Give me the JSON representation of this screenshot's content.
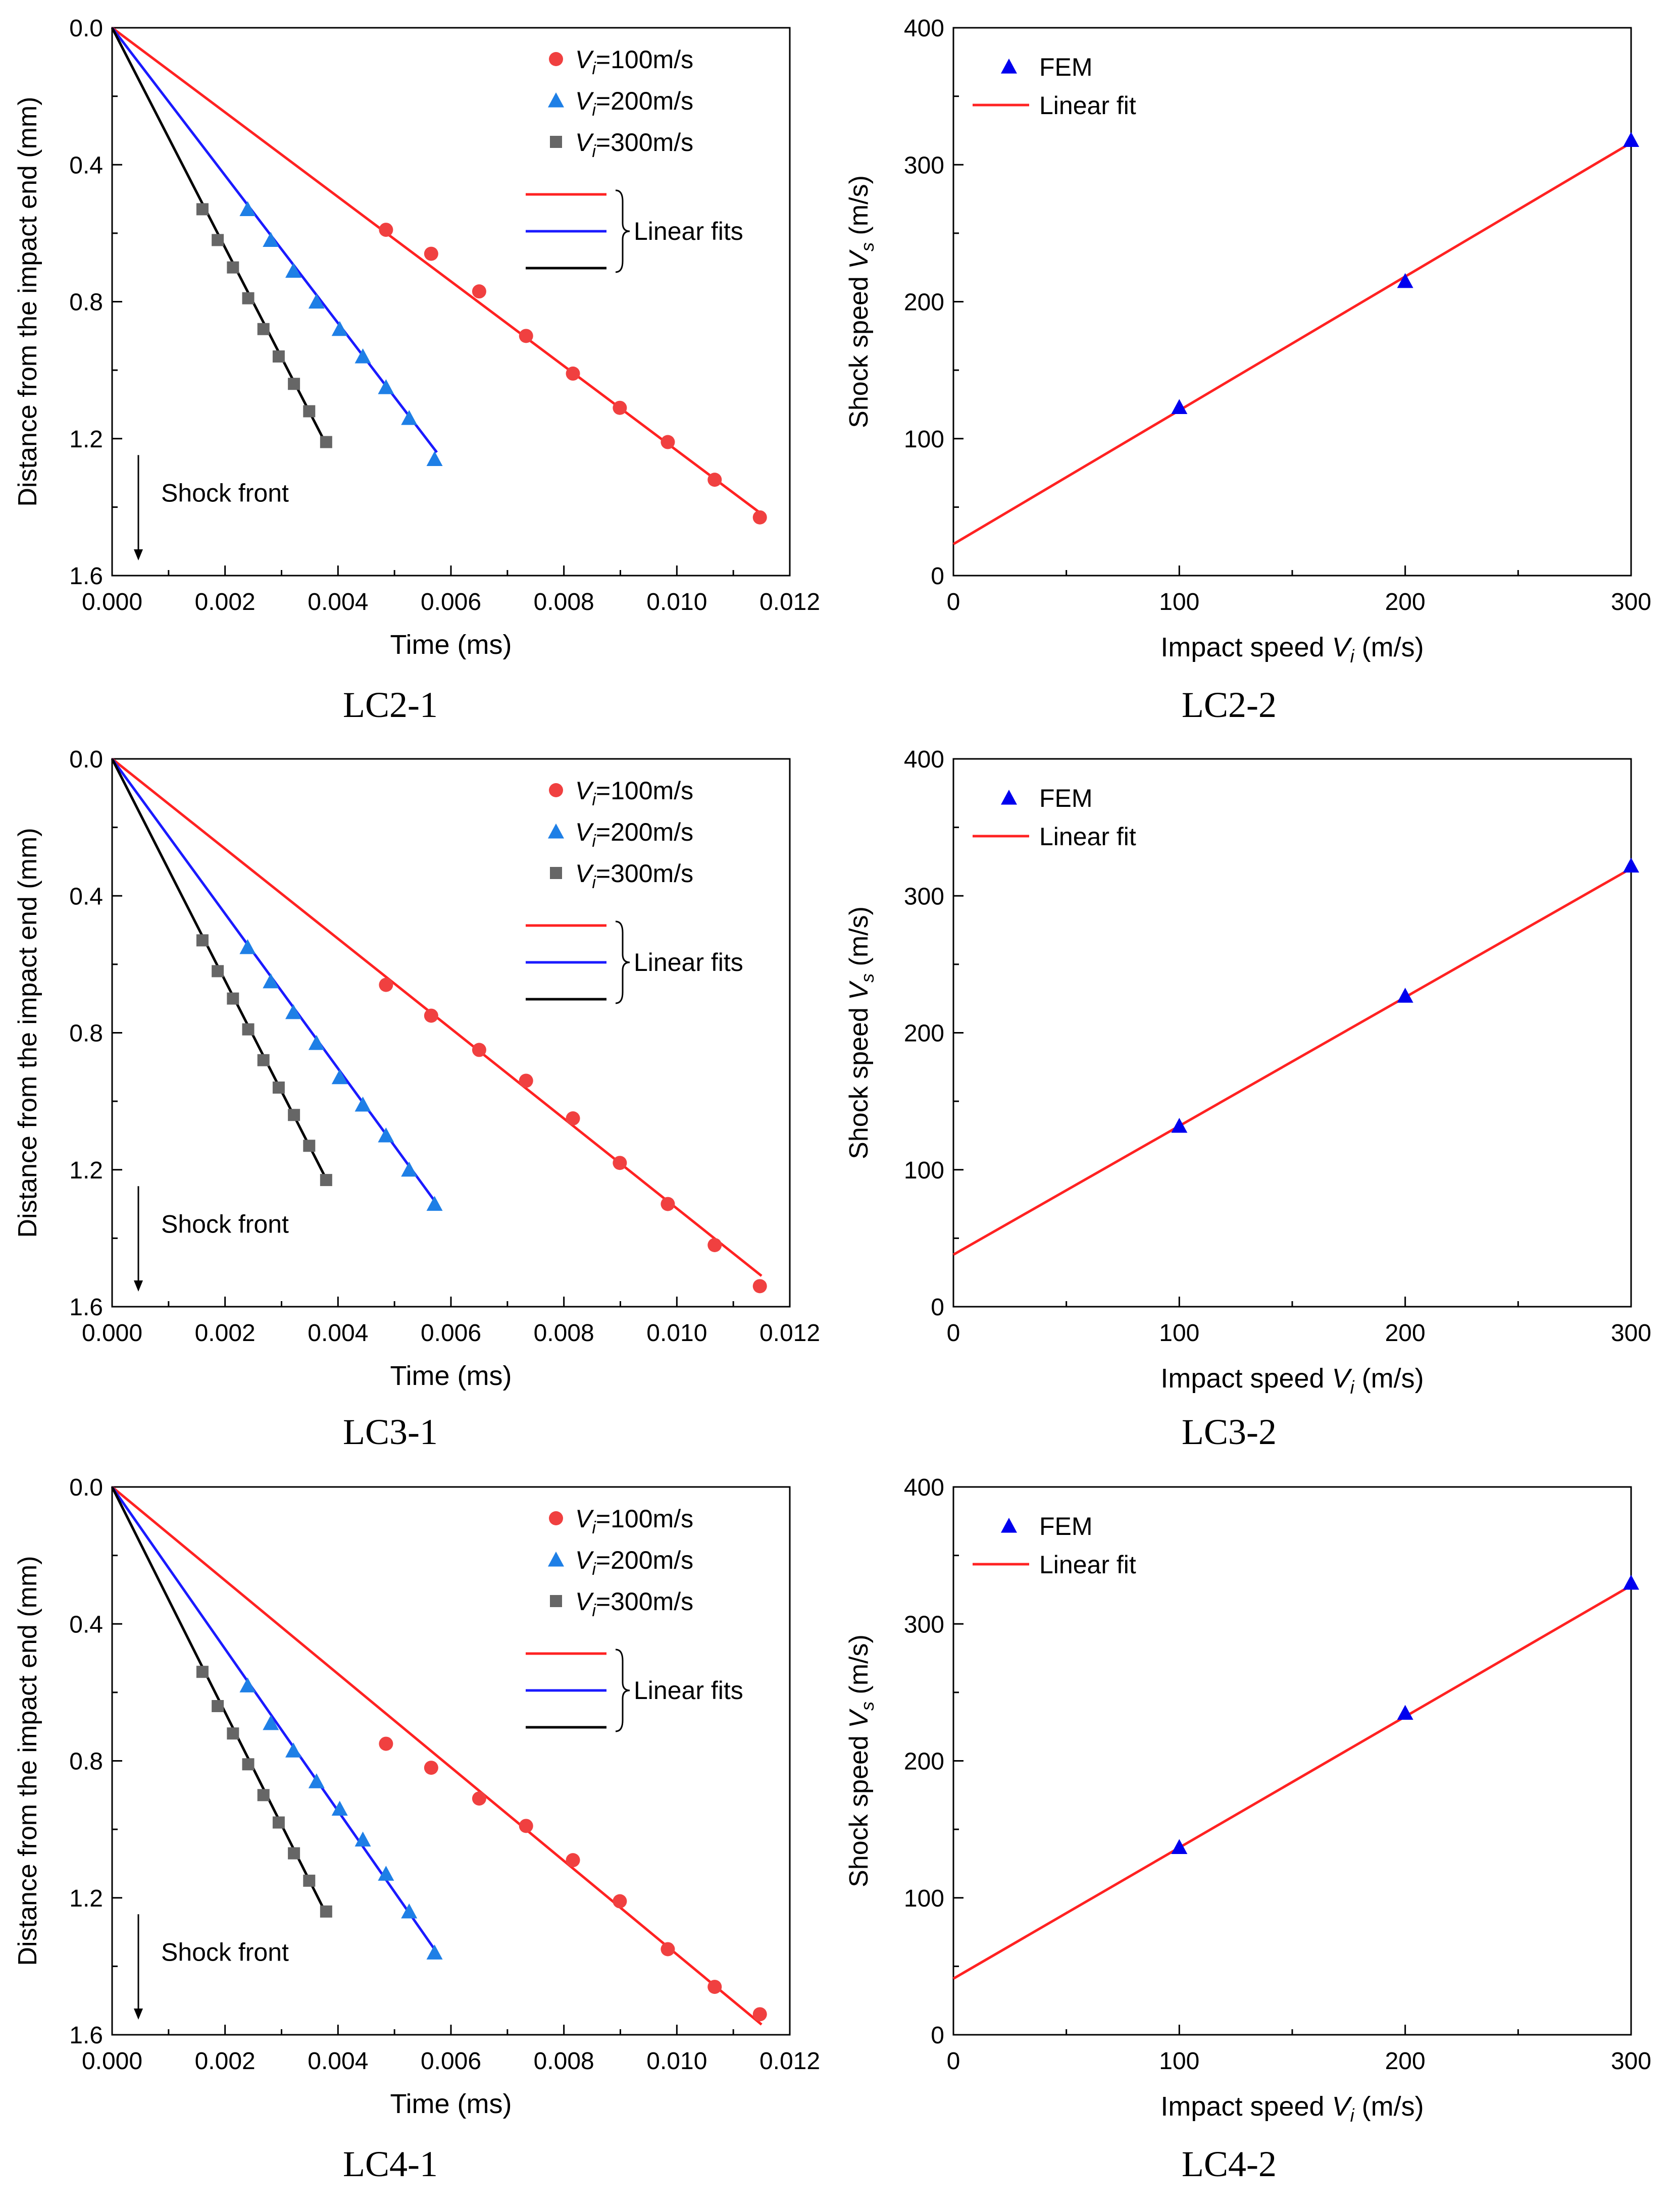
{
  "figure": {
    "colors": {
      "red": "#ff2222",
      "red_marker": "#f04040",
      "blue": "#1a1aff",
      "blue_marker": "#1e7fe6",
      "black": "#000000",
      "gray_marker": "#666666",
      "fem_marker": "#0000ee"
    }
  },
  "chart_data": [
    {
      "id": "LC2-1",
      "type": "scatter",
      "caption": "LC2-1",
      "xlabel": "Time (ms)",
      "ylabel": "Distance from the impact end (mm)",
      "xlim": [
        0,
        0.012
      ],
      "ylim": [
        0,
        1.6
      ],
      "y_inverted": true,
      "xticks": [
        "0.000",
        "0.002",
        "0.004",
        "0.006",
        "0.008",
        "0.010",
        "0.012"
      ],
      "yticks": [
        "0.0",
        "0.4",
        "0.8",
        "1.2",
        "1.6"
      ],
      "legend": {
        "position": "top-right",
        "entries": [
          {
            "prefix": "V",
            "sub": "i",
            "text": "=100m/s"
          },
          {
            "prefix": "V",
            "sub": "i",
            "text": "=200m/s"
          },
          {
            "prefix": "V",
            "sub": "i",
            "text": "=300m/s"
          }
        ],
        "fit_label": "Linear fits"
      },
      "annotation": "Shock front",
      "series": [
        {
          "name": "Vi=100m/s",
          "marker": "circle",
          "color": "#f04040",
          "x": [
            0.00485,
            0.00565,
            0.0065,
            0.00733,
            0.00816,
            0.00899,
            0.00984,
            0.01067,
            0.01147
          ],
          "y": [
            0.59,
            0.66,
            0.77,
            0.9,
            1.01,
            1.11,
            1.21,
            1.32,
            1.43
          ],
          "fit": {
            "x": [
              0,
              0.0115
            ],
            "y": [
              0,
              1.42
            ],
            "color": "#ff2222"
          }
        },
        {
          "name": "Vi=200m/s",
          "marker": "triangle",
          "color": "#1e7fe6",
          "x": [
            0.0024,
            0.00281,
            0.00321,
            0.00362,
            0.00403,
            0.00444,
            0.00485,
            0.00526,
            0.00571
          ],
          "y": [
            0.53,
            0.62,
            0.71,
            0.8,
            0.88,
            0.96,
            1.05,
            1.14,
            1.26
          ],
          "fit": {
            "x": [
              0,
              0.00575
            ],
            "y": [
              0,
              1.24
            ],
            "color": "#1a1aff"
          }
        },
        {
          "name": "Vi=300m/s",
          "marker": "square",
          "color": "#666666",
          "x": [
            0.0016,
            0.00187,
            0.00214,
            0.00241,
            0.00268,
            0.00295,
            0.00322,
            0.00349,
            0.00379
          ],
          "y": [
            0.53,
            0.62,
            0.7,
            0.79,
            0.88,
            0.96,
            1.04,
            1.12,
            1.21
          ],
          "fit": {
            "x": [
              0,
              0.0038
            ],
            "y": [
              0,
              1.22
            ],
            "color": "#000000"
          }
        }
      ]
    },
    {
      "id": "LC2-2",
      "type": "scatter",
      "caption": "LC2-2",
      "xlabel_text": "Impact speed ",
      "xlabel_var": "V",
      "xlabel_sub": "i",
      "xlabel_unit": " (m/s)",
      "ylabel_text": "Shock speed ",
      "ylabel_var": "V",
      "ylabel_sub": "s",
      "ylabel_unit": " (m/s)",
      "xlim": [
        0,
        300
      ],
      "ylim": [
        0,
        400
      ],
      "xticks": [
        "0",
        "100",
        "200",
        "300"
      ],
      "yticks": [
        "0",
        "100",
        "200",
        "300",
        "400"
      ],
      "legend": {
        "position": "top-left",
        "marker_label": "FEM",
        "line_label": "Linear fit"
      },
      "series": [
        {
          "name": "FEM",
          "marker": "triangle",
          "color": "#0000ee",
          "x": [
            100,
            200,
            300
          ],
          "y": [
            123,
            215,
            318
          ]
        }
      ],
      "fit": {
        "x": [
          0,
          300
        ],
        "y": [
          23,
          316
        ],
        "color": "#ff2222"
      }
    },
    {
      "id": "LC3-1",
      "type": "scatter",
      "caption": "LC3-1",
      "xlabel": "Time (ms)",
      "ylabel": "Distance from the impact end (mm)",
      "xlim": [
        0,
        0.012
      ],
      "ylim": [
        0,
        1.6
      ],
      "y_inverted": true,
      "xticks": [
        "0.000",
        "0.002",
        "0.004",
        "0.006",
        "0.008",
        "0.010",
        "0.012"
      ],
      "yticks": [
        "0.0",
        "0.4",
        "0.8",
        "1.2",
        "1.6"
      ],
      "legend": {
        "position": "top-right",
        "entries": [
          {
            "prefix": "V",
            "sub": "i",
            "text": "=100m/s"
          },
          {
            "prefix": "V",
            "sub": "i",
            "text": "=200m/s"
          },
          {
            "prefix": "V",
            "sub": "i",
            "text": "=300m/s"
          }
        ],
        "fit_label": "Linear fits"
      },
      "annotation": "Shock front",
      "series": [
        {
          "name": "Vi=100m/s",
          "marker": "circle",
          "color": "#f04040",
          "x": [
            0.00485,
            0.00565,
            0.0065,
            0.00733,
            0.00816,
            0.00899,
            0.00984,
            0.01067,
            0.01147
          ],
          "y": [
            0.66,
            0.75,
            0.85,
            0.94,
            1.05,
            1.18,
            1.3,
            1.42,
            1.54
          ],
          "fit": {
            "x": [
              0,
              0.0115
            ],
            "y": [
              0,
              1.51
            ],
            "color": "#ff2222"
          }
        },
        {
          "name": "Vi=200m/s",
          "marker": "triangle",
          "color": "#1e7fe6",
          "x": [
            0.0024,
            0.00281,
            0.00321,
            0.00362,
            0.00403,
            0.00444,
            0.00485,
            0.00526,
            0.00571
          ],
          "y": [
            0.55,
            0.65,
            0.74,
            0.83,
            0.93,
            1.01,
            1.1,
            1.2,
            1.3
          ],
          "fit": {
            "x": [
              0,
              0.00575
            ],
            "y": [
              0,
              1.3
            ],
            "color": "#1a1aff"
          }
        },
        {
          "name": "Vi=300m/s",
          "marker": "square",
          "color": "#666666",
          "x": [
            0.0016,
            0.00187,
            0.00214,
            0.00241,
            0.00268,
            0.00295,
            0.00322,
            0.00349,
            0.00379
          ],
          "y": [
            0.53,
            0.62,
            0.7,
            0.79,
            0.88,
            0.96,
            1.04,
            1.13,
            1.23
          ],
          "fit": {
            "x": [
              0,
              0.0038
            ],
            "y": [
              0,
              1.23
            ],
            "color": "#000000"
          }
        }
      ]
    },
    {
      "id": "LC3-2",
      "type": "scatter",
      "caption": "LC3-2",
      "xlabel_text": "Impact speed ",
      "xlabel_var": "V",
      "xlabel_sub": "i",
      "xlabel_unit": " (m/s)",
      "ylabel_text": "Shock speed ",
      "ylabel_var": "V",
      "ylabel_sub": "s",
      "ylabel_unit": " (m/s)",
      "xlim": [
        0,
        300
      ],
      "ylim": [
        0,
        400
      ],
      "xticks": [
        "0",
        "100",
        "200",
        "300"
      ],
      "yticks": [
        "0",
        "100",
        "200",
        "300",
        "400"
      ],
      "legend": {
        "position": "top-left",
        "marker_label": "FEM",
        "line_label": "Linear fit"
      },
      "series": [
        {
          "name": "FEM",
          "marker": "triangle",
          "color": "#0000ee",
          "x": [
            100,
            200,
            300
          ],
          "y": [
            132,
            227,
            322
          ]
        }
      ],
      "fit": {
        "x": [
          0,
          300
        ],
        "y": [
          38,
          320
        ],
        "color": "#ff2222"
      }
    },
    {
      "id": "LC4-1",
      "type": "scatter",
      "caption": "LC4-1",
      "xlabel": "Time (ms)",
      "ylabel": "Distance from the impact end (mm)",
      "xlim": [
        0,
        0.012
      ],
      "ylim": [
        0,
        1.6
      ],
      "y_inverted": true,
      "xticks": [
        "0.000",
        "0.002",
        "0.004",
        "0.006",
        "0.008",
        "0.010",
        "0.012"
      ],
      "yticks": [
        "0.0",
        "0.4",
        "0.8",
        "1.2",
        "1.6"
      ],
      "legend": {
        "position": "top-right",
        "entries": [
          {
            "prefix": "V",
            "sub": "i",
            "text": "=100m/s"
          },
          {
            "prefix": "V",
            "sub": "i",
            "text": "=200m/s"
          },
          {
            "prefix": "V",
            "sub": "i",
            "text": "=300m/s"
          }
        ],
        "fit_label": "Linear fits"
      },
      "annotation": "Shock front",
      "series": [
        {
          "name": "Vi=100m/s",
          "marker": "circle",
          "color": "#f04040",
          "x": [
            0.00485,
            0.00565,
            0.0065,
            0.00733,
            0.00816,
            0.00899,
            0.00984,
            0.01067,
            0.01147
          ],
          "y": [
            0.75,
            0.82,
            0.91,
            0.99,
            1.09,
            1.21,
            1.35,
            1.46,
            1.54
          ],
          "fit": {
            "x": [
              0,
              0.0115
            ],
            "y": [
              0,
              1.57
            ],
            "color": "#ff2222"
          }
        },
        {
          "name": "Vi=200m/s",
          "marker": "triangle",
          "color": "#1e7fe6",
          "x": [
            0.0024,
            0.00281,
            0.00321,
            0.00362,
            0.00403,
            0.00444,
            0.00485,
            0.00526,
            0.00571
          ],
          "y": [
            0.58,
            0.69,
            0.77,
            0.86,
            0.94,
            1.03,
            1.13,
            1.24,
            1.36
          ],
          "fit": {
            "x": [
              0,
              0.00575
            ],
            "y": [
              0,
              1.36
            ],
            "color": "#1a1aff"
          }
        },
        {
          "name": "Vi=300m/s",
          "marker": "square",
          "color": "#666666",
          "x": [
            0.0016,
            0.00187,
            0.00214,
            0.00241,
            0.00268,
            0.00295,
            0.00322,
            0.00349,
            0.00379
          ],
          "y": [
            0.54,
            0.64,
            0.72,
            0.81,
            0.9,
            0.98,
            1.07,
            1.15,
            1.24
          ],
          "fit": {
            "x": [
              0,
              0.0038
            ],
            "y": [
              0,
              1.25
            ],
            "color": "#000000"
          }
        }
      ]
    },
    {
      "id": "LC4-2",
      "type": "scatter",
      "caption": "LC4-2",
      "xlabel_text": "Impact speed ",
      "xlabel_var": "V",
      "xlabel_sub": "i",
      "xlabel_unit": " (m/s)",
      "ylabel_text": "Shock speed ",
      "ylabel_var": "V",
      "ylabel_sub": "s",
      "ylabel_unit": " (m/s)",
      "xlim": [
        0,
        300
      ],
      "ylim": [
        0,
        400
      ],
      "xticks": [
        "0",
        "100",
        "200",
        "300"
      ],
      "yticks": [
        "0",
        "100",
        "200",
        "300",
        "400"
      ],
      "legend": {
        "position": "top-left",
        "marker_label": "FEM",
        "line_label": "Linear fit"
      },
      "series": [
        {
          "name": "FEM",
          "marker": "triangle",
          "color": "#0000ee",
          "x": [
            100,
            200,
            300
          ],
          "y": [
            137,
            235,
            330
          ]
        }
      ],
      "fit": {
        "x": [
          0,
          300
        ],
        "y": [
          41,
          328
        ],
        "color": "#ff2222"
      }
    }
  ]
}
